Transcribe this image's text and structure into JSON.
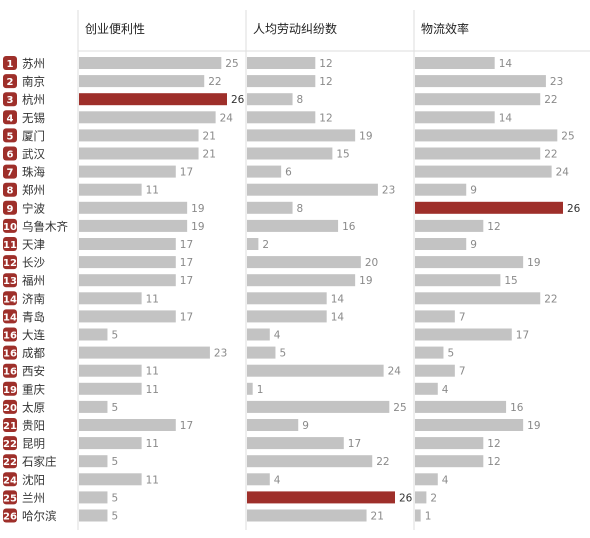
{
  "chart_data": {
    "type": "bar",
    "cities": [
      "苏州",
      "南京",
      "杭州",
      "无锡",
      "厦门",
      "武汉",
      "珠海",
      "郑州",
      "宁波",
      "乌鲁木齐",
      "天津",
      "长沙",
      "福州",
      "济南",
      "青岛",
      "大连",
      "成都",
      "西安",
      "重庆",
      "太原",
      "贵阳",
      "昆明",
      "石家庄",
      "沈阳",
      "兰州",
      "哈尔滨"
    ],
    "ranks": [
      "1",
      "2",
      "3",
      "4",
      "5",
      "6",
      "7",
      "8",
      "9",
      "10",
      "11",
      "12",
      "13",
      "14",
      "14",
      "16",
      "16",
      "16",
      "19",
      "20",
      "21",
      "22",
      "22",
      "24",
      "25",
      "26"
    ],
    "panels": [
      {
        "title": "创业便利性",
        "values": [
          25,
          22,
          26,
          24,
          21,
          21,
          17,
          11,
          19,
          19,
          17,
          17,
          17,
          11,
          17,
          5,
          23,
          11,
          11,
          5,
          17,
          11,
          5,
          11,
          5,
          5
        ],
        "highlight": [
          2
        ]
      },
      {
        "title": "人均劳动纠纷数",
        "values": [
          12,
          12,
          8,
          12,
          19,
          15,
          6,
          23,
          8,
          16,
          2,
          20,
          19,
          14,
          14,
          4,
          5,
          24,
          1,
          25,
          9,
          17,
          22,
          4,
          26,
          21
        ],
        "highlight": [
          24
        ]
      },
      {
        "title": "物流效率",
        "values": [
          14,
          23,
          22,
          14,
          25,
          22,
          24,
          9,
          26,
          12,
          9,
          19,
          15,
          22,
          7,
          17,
          5,
          7,
          4,
          16,
          19,
          12,
          12,
          4,
          2,
          1
        ],
        "highlight": [
          8
        ]
      }
    ],
    "colors": {
      "bar": "#c3c3c3",
      "highlight": "#9e2f2a",
      "badge": "#9e2f2a",
      "line": "#dedede",
      "text": "#333333",
      "value": "#8a8a8a"
    },
    "xlim": [
      0,
      26
    ]
  }
}
